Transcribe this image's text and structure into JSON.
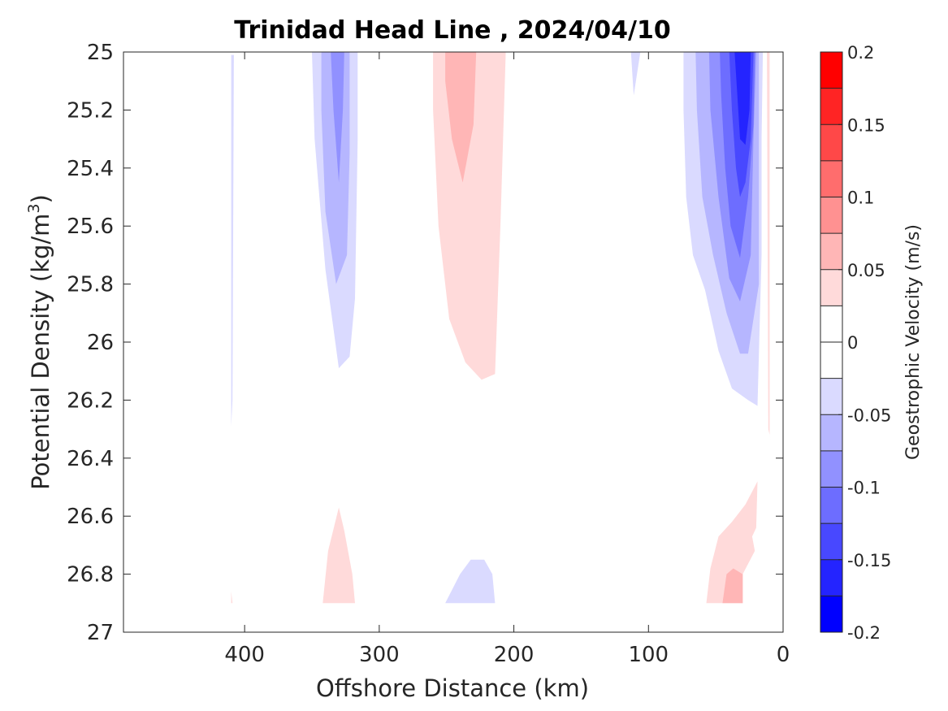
{
  "chart_data": {
    "type": "filled-contour",
    "title": "Trinidad Head Line , 2024/04/10",
    "xlabel": "Offshore Distance (km)",
    "ylabel_main": "Potential Density (kg/m",
    "ylabel_sup": "3",
    "ylabel_close": ")",
    "x_reversed": true,
    "y_reversed": true,
    "xlim": [
      0,
      490
    ],
    "ylim": [
      25,
      27
    ],
    "x_ticks": [
      400,
      300,
      200,
      100,
      0
    ],
    "x_tick_labels": [
      "400",
      "300",
      "200",
      "100",
      "0"
    ],
    "y_ticks": [
      25,
      25.2,
      25.4,
      25.6,
      25.8,
      26,
      26.2,
      26.4,
      26.6,
      26.8,
      27
    ],
    "y_tick_labels": [
      "25",
      "25.2",
      "25.4",
      "25.6",
      "25.8",
      "26",
      "26.2",
      "26.4",
      "26.6",
      "26.8",
      "27"
    ],
    "colorbar": {
      "label": "Geostrophic Velocity (m/s)",
      "range": [
        -0.2,
        0.2
      ],
      "tick_values": [
        0.2,
        0.15,
        0.1,
        0.05,
        0,
        -0.05,
        -0.1,
        -0.15,
        -0.2
      ],
      "tick_labels": [
        "0.2",
        "0.15",
        "0.1",
        "0.05",
        "0",
        "-0.05",
        "-0.1",
        "-0.15",
        "-0.2"
      ],
      "levels": [
        {
          "min": 0.175,
          "max": 0.2,
          "color": "#ff0000"
        },
        {
          "min": 0.15,
          "max": 0.175,
          "color": "#ff2424"
        },
        {
          "min": 0.125,
          "max": 0.15,
          "color": "#ff4848"
        },
        {
          "min": 0.1,
          "max": 0.125,
          "color": "#ff6d6d"
        },
        {
          "min": 0.075,
          "max": 0.1,
          "color": "#ff9191"
        },
        {
          "min": 0.05,
          "max": 0.075,
          "color": "#ffb6b6"
        },
        {
          "min": 0.025,
          "max": 0.05,
          "color": "#ffdada"
        },
        {
          "min": 0,
          "max": 0.025,
          "color": "#ffffff"
        },
        {
          "min": -0.025,
          "max": 0,
          "color": "#ffffff"
        },
        {
          "min": -0.05,
          "max": -0.025,
          "color": "#dadaff"
        },
        {
          "min": -0.075,
          "max": -0.05,
          "color": "#b6b6ff"
        },
        {
          "min": -0.1,
          "max": -0.075,
          "color": "#9191ff"
        },
        {
          "min": -0.125,
          "max": -0.1,
          "color": "#6d6dff"
        },
        {
          "min": -0.15,
          "max": -0.125,
          "color": "#4848ff"
        },
        {
          "min": -0.175,
          "max": -0.15,
          "color": "#2424ff"
        },
        {
          "min": -0.2,
          "max": -0.175,
          "color": "#0000ff"
        }
      ]
    },
    "contour_regions": [
      {
        "level": -0.05,
        "color": "#dadaff",
        "points": [
          [
            410,
            25.01
          ],
          [
            408,
            25.01
          ],
          [
            409,
            26.2
          ],
          [
            410,
            26.29
          ]
        ]
      },
      {
        "level": -0.05,
        "color": "#dadaff",
        "points": [
          [
            350,
            25
          ],
          [
            316,
            25
          ],
          [
            316,
            25.3
          ],
          [
            318,
            25.85
          ],
          [
            322,
            26.05
          ],
          [
            330,
            26.09
          ],
          [
            340,
            25.75
          ],
          [
            348,
            25.3
          ]
        ]
      },
      {
        "level": -0.075,
        "color": "#b6b6ff",
        "points": [
          [
            343,
            25
          ],
          [
            322,
            25
          ],
          [
            322,
            25.35
          ],
          [
            324,
            25.7
          ],
          [
            332,
            25.8
          ],
          [
            340,
            25.55
          ],
          [
            343,
            25.2
          ]
        ]
      },
      {
        "level": -0.1,
        "color": "#9191ff",
        "points": [
          [
            336,
            25
          ],
          [
            326,
            25
          ],
          [
            327,
            25.2
          ],
          [
            330,
            25.45
          ],
          [
            334,
            25.2
          ]
        ]
      },
      {
        "level": 0.05,
        "color": "#ffdada",
        "points": [
          [
            260,
            25
          ],
          [
            206,
            25
          ],
          [
            210,
            25.6
          ],
          [
            214,
            26.11
          ],
          [
            224,
            26.13
          ],
          [
            236,
            26.07
          ],
          [
            248,
            25.92
          ],
          [
            256,
            25.6
          ],
          [
            260,
            25.2
          ]
        ]
      },
      {
        "level": 0.075,
        "color": "#ffb6b6",
        "points": [
          [
            251,
            25
          ],
          [
            228,
            25
          ],
          [
            230,
            25.25
          ],
          [
            238,
            25.45
          ],
          [
            246,
            25.3
          ],
          [
            251,
            25.1
          ]
        ]
      },
      {
        "level": -0.05,
        "color": "#dadaff",
        "points": [
          [
            113,
            25
          ],
          [
            106,
            25
          ],
          [
            111,
            25.15
          ]
        ]
      },
      {
        "level": -0.05,
        "color": "#dadaff",
        "points": [
          [
            74,
            25
          ],
          [
            15,
            25
          ],
          [
            16,
            25.3
          ],
          [
            16,
            25.7
          ],
          [
            19,
            26.22
          ],
          [
            26,
            26.2
          ],
          [
            38,
            26.16
          ],
          [
            48,
            26.03
          ],
          [
            58,
            25.82
          ],
          [
            67,
            25.7
          ],
          [
            72,
            25.5
          ],
          [
            74,
            25.2
          ]
        ]
      },
      {
        "level": -0.075,
        "color": "#b6b6ff",
        "points": [
          [
            65,
            25
          ],
          [
            18,
            25
          ],
          [
            18,
            25.3
          ],
          [
            18,
            25.8
          ],
          [
            26,
            26.04
          ],
          [
            32,
            26.04
          ],
          [
            42,
            25.9
          ],
          [
            52,
            25.7
          ],
          [
            60,
            25.5
          ],
          [
            64,
            25.2
          ]
        ]
      },
      {
        "level": -0.1,
        "color": "#9191ff",
        "points": [
          [
            55,
            25
          ],
          [
            20,
            25
          ],
          [
            22,
            25.3
          ],
          [
            24,
            25.7
          ],
          [
            32,
            25.86
          ],
          [
            40,
            25.78
          ],
          [
            48,
            25.5
          ],
          [
            54,
            25.2
          ]
        ]
      },
      {
        "level": -0.125,
        "color": "#6d6dff",
        "points": [
          [
            47,
            25
          ],
          [
            21,
            25
          ],
          [
            22,
            25.25
          ],
          [
            26,
            25.5
          ],
          [
            32,
            25.71
          ],
          [
            39,
            25.6
          ],
          [
            43,
            25.4
          ],
          [
            46,
            25.15
          ]
        ]
      },
      {
        "level": -0.15,
        "color": "#4848ff",
        "points": [
          [
            40,
            25
          ],
          [
            22,
            25
          ],
          [
            24,
            25.3
          ],
          [
            28,
            25.45
          ],
          [
            32,
            25.5
          ],
          [
            35,
            25.4
          ],
          [
            38,
            25.2
          ]
        ]
      },
      {
        "level": -0.175,
        "color": "#2424ff",
        "points": [
          [
            36,
            25
          ],
          [
            24,
            25
          ],
          [
            25,
            25.2
          ],
          [
            28,
            25.32
          ],
          [
            32,
            25.3
          ],
          [
            34,
            25.15
          ]
        ]
      },
      {
        "level": 0.05,
        "color": "#ffdada",
        "points": [
          [
            12,
            25
          ],
          [
            10,
            25
          ],
          [
            10,
            26.32
          ],
          [
            9,
            26.34
          ],
          [
            11,
            26.3
          ]
        ]
      },
      {
        "level": 0.05,
        "color": "#ffdada",
        "points": [
          [
            410,
            26.86
          ],
          [
            409,
            26.9
          ],
          [
            410,
            26.9
          ]
        ]
      },
      {
        "level": 0.05,
        "color": "#ffdada",
        "points": [
          [
            342,
            26.9
          ],
          [
            318,
            26.9
          ],
          [
            320,
            26.8
          ],
          [
            326,
            26.65
          ],
          [
            330,
            26.57
          ],
          [
            338,
            26.72
          ]
        ]
      },
      {
        "level": -0.05,
        "color": "#dadaff",
        "points": [
          [
            251,
            26.9
          ],
          [
            214,
            26.9
          ],
          [
            216,
            26.8
          ],
          [
            222,
            26.75
          ],
          [
            232,
            26.75
          ],
          [
            240,
            26.8
          ]
        ]
      },
      {
        "level": 0.05,
        "color": "#ffdada",
        "points": [
          [
            57,
            26.9
          ],
          [
            30,
            26.9
          ],
          [
            30,
            26.8
          ],
          [
            21,
            26.72
          ],
          [
            23,
            26.67
          ],
          [
            20,
            26.64
          ],
          [
            19,
            26.48
          ],
          [
            28,
            26.56
          ],
          [
            38,
            26.62
          ],
          [
            48,
            26.67
          ],
          [
            54,
            26.78
          ]
        ]
      },
      {
        "level": 0.075,
        "color": "#ffb6b6",
        "points": [
          [
            45,
            26.9
          ],
          [
            30,
            26.9
          ],
          [
            30,
            26.8
          ],
          [
            37,
            26.78
          ],
          [
            42,
            26.8
          ]
        ]
      }
    ]
  }
}
